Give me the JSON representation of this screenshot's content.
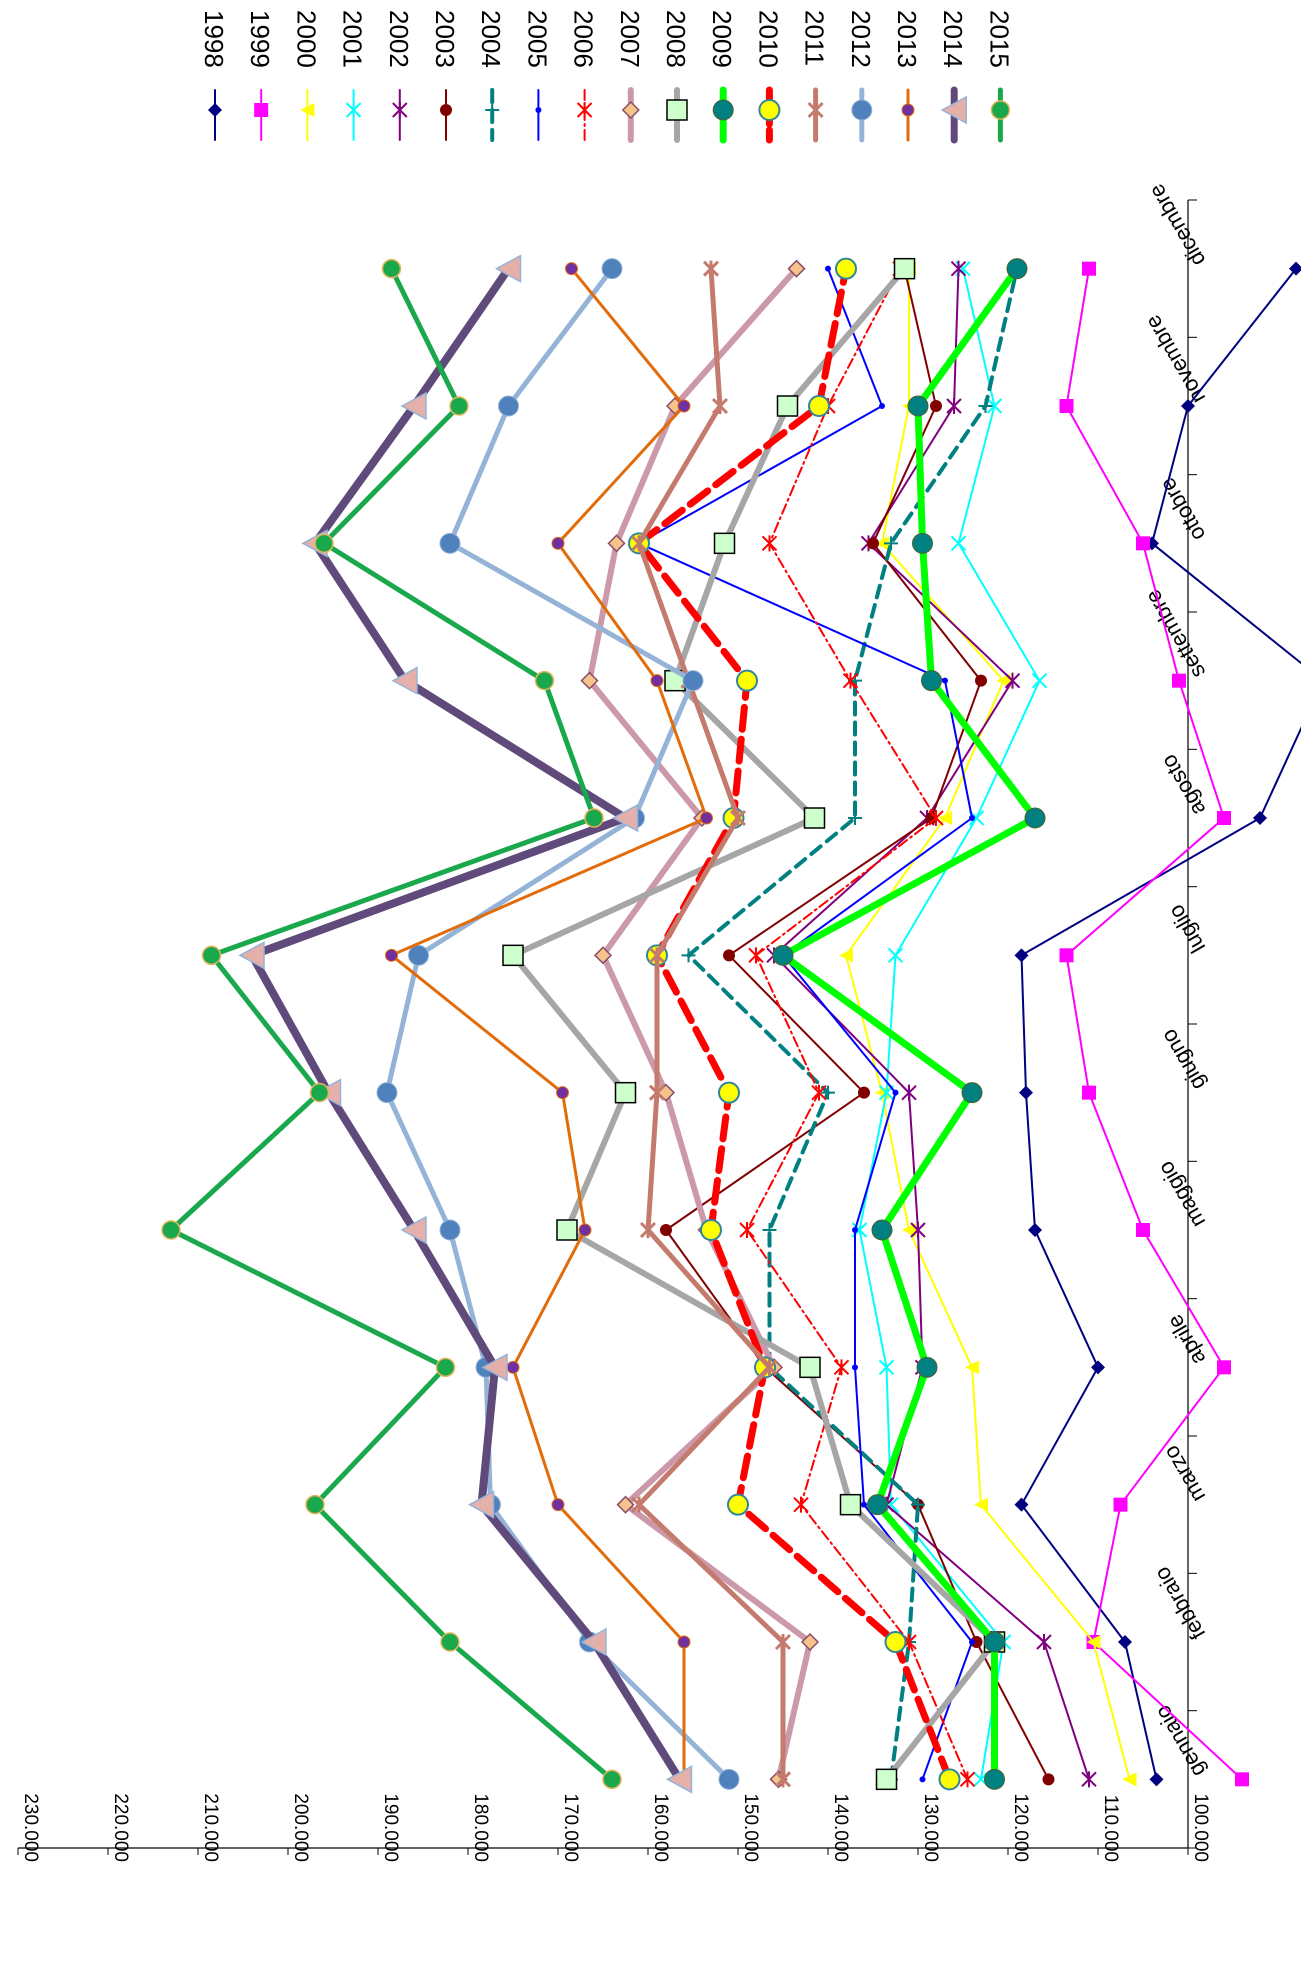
{
  "chart_data": {
    "type": "line",
    "title": "",
    "xlabel": "",
    "ylabel": "",
    "orientation": "rotated 90 degrees clockwise; month axis at right, value axis at bottom",
    "grid": false,
    "legend_position": "top",
    "ylim": [
      100000,
      230000
    ],
    "yticks": [
      "100.000",
      "110.000",
      "120.000",
      "130.000",
      "140.000",
      "150.000",
      "160.000",
      "170.000",
      "180.000",
      "190.000",
      "200.000",
      "210.000",
      "220.000",
      "230.000"
    ],
    "categories": [
      "gennaio",
      "febbraio",
      "marzo",
      "aprile",
      "maggio",
      "giugno",
      "luglio",
      "agosto",
      "settembre",
      "ottobre",
      "novembre",
      "dicembre"
    ],
    "series": [
      {
        "name": "1998",
        "color": "#000080",
        "marker": "diamond",
        "width": 2,
        "values": [
          103500,
          107000,
          118500,
          110000,
          117000,
          118000,
          118500,
          92000,
          85000,
          104000,
          100000,
          88000
        ]
      },
      {
        "name": "1999",
        "color": "#ff00ff",
        "marker": "square",
        "width": 2,
        "values": [
          94000,
          110500,
          107500,
          96000,
          105000,
          111000,
          113500,
          96000,
          101000,
          105000,
          113500,
          111000
        ]
      },
      {
        "name": "2000",
        "color": "#ffff00",
        "marker": "triangle",
        "width": 2,
        "values": [
          106500,
          110500,
          123000,
          124000,
          131000,
          134000,
          138000,
          127000,
          120500,
          134000,
          131000,
          131000
        ]
      },
      {
        "name": "2001",
        "color": "#00ffff",
        "marker": "x",
        "width": 2,
        "values": [
          123000,
          120500,
          133000,
          133500,
          136500,
          133500,
          132500,
          123500,
          116500,
          125500,
          121500,
          125000
        ]
      },
      {
        "name": "2002",
        "color": "#800080",
        "marker": "star",
        "width": 2,
        "values": [
          111000,
          116000,
          133500,
          129500,
          130000,
          131000,
          146000,
          129000,
          119500,
          135500,
          126000,
          125500
        ]
      },
      {
        "name": "2003",
        "color": "#800000",
        "marker": "circle",
        "width": 2,
        "values": [
          115500,
          123500,
          130000,
          147000,
          158000,
          136000,
          151000,
          128500,
          123000,
          135000,
          128000,
          131500
        ]
      },
      {
        "name": "2004",
        "color": "#008080",
        "marker": "plus",
        "width": 4,
        "dash": "12,8",
        "values": [
          133000,
          131000,
          130000,
          146500,
          146500,
          140000,
          155500,
          137000,
          137000,
          133000,
          122500,
          119000
        ]
      },
      {
        "name": "2005",
        "color": "#0000ff",
        "marker": "dot",
        "width": 2,
        "values": [
          129500,
          124000,
          136000,
          137000,
          137000,
          132500,
          145000,
          124000,
          127000,
          161000,
          134000,
          140000
        ]
      },
      {
        "name": "2006",
        "color": "#ff0000",
        "marker": "xstar",
        "width": 2,
        "dash": "10,4,2,4",
        "values": [
          124500,
          131000,
          143000,
          138500,
          149000,
          141000,
          148000,
          128000,
          137500,
          146500,
          140000,
          132000
        ]
      },
      {
        "name": "2007",
        "color": "#cc99aa",
        "marker": "diamond-tan",
        "width": 6,
        "values": [
          145500,
          142000,
          162500,
          146000,
          153500,
          158000,
          165000,
          154000,
          166500,
          163500,
          157000,
          143500
        ]
      },
      {
        "name": "2008",
        "color": "#a6a6a6",
        "marker": "square-green",
        "width": 6,
        "values": [
          133500,
          121500,
          137500,
          142000,
          169000,
          162500,
          175000,
          141500,
          157000,
          151500,
          144500,
          131500
        ]
      },
      {
        "name": "2009",
        "color": "#00ff00",
        "marker": "circle-teal",
        "width": 7,
        "values": [
          121500,
          121500,
          134500,
          129000,
          134000,
          124000,
          145000,
          117000,
          128500,
          129500,
          130000,
          119000
        ]
      },
      {
        "name": "2010",
        "color": "#ff0000",
        "marker": "circle-yellow",
        "width": 7,
        "dash": "22,10",
        "values": [
          126500,
          132500,
          150000,
          147000,
          153000,
          151000,
          159000,
          150500,
          149000,
          161000,
          141000,
          138000
        ]
      },
      {
        "name": "2011",
        "color": "#c47b6e",
        "marker": "star-pink",
        "width": 5,
        "values": [
          145000,
          145000,
          161000,
          146500,
          160000,
          159000,
          159000,
          150000,
          155500,
          161000,
          152000,
          153000
        ]
      },
      {
        "name": "2012",
        "color": "#95b3d7",
        "marker": "circle-blue",
        "width": 5,
        "values": [
          151000,
          166500,
          177500,
          178000,
          182000,
          189000,
          185500,
          161500,
          155000,
          182000,
          175500,
          164000
        ]
      },
      {
        "name": "2013",
        "color": "#e26b0a",
        "marker": "circle-purple",
        "width": 3,
        "values": [
          156000,
          156000,
          170000,
          175000,
          167000,
          169500,
          188500,
          153500,
          159000,
          170000,
          156000,
          168500
        ]
      },
      {
        "name": "2014",
        "color": "#604a7b",
        "marker": "triangle-pink",
        "width": 8,
        "values": [
          156500,
          166000,
          178500,
          177000,
          186000,
          195500,
          204000,
          162500,
          187000,
          197000,
          186000,
          175500
        ]
      },
      {
        "name": "2015",
        "color": "#1aa84c",
        "marker": "circle-green",
        "width": 5,
        "values": [
          164000,
          182000,
          197000,
          182500,
          213000,
          196500,
          208500,
          166000,
          171500,
          196000,
          181000,
          188500
        ]
      }
    ]
  }
}
